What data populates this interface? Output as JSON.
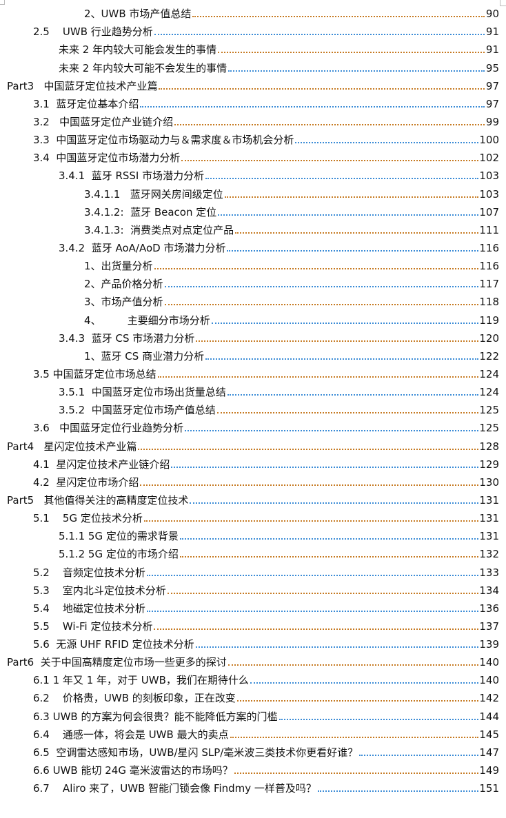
{
  "toc": [
    {
      "level": 3,
      "label": "2、UWB 市场产值总结",
      "page": "90"
    },
    {
      "level": 1,
      "label": "2.5    UWB 行业趋势分析",
      "page": "91"
    },
    {
      "level": 2,
      "label": "未来 2 年内较大可能会发生的事情",
      "page": "91"
    },
    {
      "level": 2,
      "label": "未来 2 年内较大可能不会发生的事情",
      "page": "95"
    },
    {
      "level": 0,
      "label": "Part3   中国蓝牙定位技术产业篇",
      "page": "97"
    },
    {
      "level": 1,
      "label": "3.1  蓝牙定位基本介绍",
      "page": "97"
    },
    {
      "level": 1,
      "label": "3.2   中国蓝牙定位产业链介绍",
      "page": "99"
    },
    {
      "level": 1,
      "label": "3.3  中国蓝牙定位市场驱动力与＆需求度＆市场机会分析",
      "page": "100"
    },
    {
      "level": 1,
      "label": "3.4  中国蓝牙定位市场潜力分析",
      "page": "102"
    },
    {
      "level": 2,
      "label": "3.4.1  蓝牙 RSSI 市场潜力分析",
      "page": "103"
    },
    {
      "level": 3,
      "label": "3.4.1.1   蓝牙网关房间级定位",
      "page": "103"
    },
    {
      "level": 3,
      "label": "3.4.1.2:  蓝牙 Beacon 定位",
      "page": "107"
    },
    {
      "level": 3,
      "label": "3.4.1.3:  消费类点对点定位产品",
      "page": "111"
    },
    {
      "level": 2,
      "label": "3.4.2  蓝牙 AoA/AoD 市场潜力分析",
      "page": "116"
    },
    {
      "level": 3,
      "label": "1、出货量分析",
      "page": "116"
    },
    {
      "level": 3,
      "label": "2、产品价格分析",
      "page": "117"
    },
    {
      "level": 3,
      "label": "3、市场产值分析",
      "page": "118"
    },
    {
      "level": 3,
      "label": "4、        主要细分市场分析",
      "page": "119"
    },
    {
      "level": 2,
      "label": "3.4.3  蓝牙 CS 市场潜力分析",
      "page": "120"
    },
    {
      "level": 3,
      "label": "1、蓝牙 CS 商业潜力分析",
      "page": "122"
    },
    {
      "level": 1,
      "label": "3.5 中国蓝牙定位市场总结",
      "page": "124"
    },
    {
      "level": 2,
      "label": "3.5.1  中国蓝牙定位市场出货量总结",
      "page": "124"
    },
    {
      "level": 2,
      "label": "3.5.2  中国蓝牙定位市场产值总结",
      "page": "125"
    },
    {
      "level": 1,
      "label": "3.6   中国蓝牙定位行业趋势分析",
      "page": "125"
    },
    {
      "level": 0,
      "label": "Part4   星闪定位技术产业篇",
      "page": "128"
    },
    {
      "level": 1,
      "label": "4.1  星闪定位技术产业链介绍",
      "page": "129"
    },
    {
      "level": 1,
      "label": "4.2  星闪定位市场介绍",
      "page": "130"
    },
    {
      "level": 0,
      "label": "Part5   其他值得关注的高精度定位技术",
      "page": "131"
    },
    {
      "level": 1,
      "label": "5.1    5G 定位技术分析",
      "page": "131"
    },
    {
      "level": 2,
      "label": "5.1.1 5G 定位的需求背景",
      "page": "131"
    },
    {
      "level": 2,
      "label": "5.1.2 5G 定位的市场介绍",
      "page": "132"
    },
    {
      "level": 1,
      "label": "5.2    音频定位技术分析",
      "page": "133"
    },
    {
      "level": 1,
      "label": "5.3    室内北斗定位技术分析",
      "page": "134"
    },
    {
      "level": 1,
      "label": "5.4    地磁定位技术分析",
      "page": "136"
    },
    {
      "level": 1,
      "label": "5.5    Wi-Fi 定位技术分析",
      "page": "137"
    },
    {
      "level": 1,
      "label": "5.6  无源 UHF RFID 定位技术分析",
      "page": "139"
    },
    {
      "level": 0,
      "label": "Part6  关于中国高精度定位市场一些更多的探讨",
      "page": "140"
    },
    {
      "level": 1,
      "label": "6.1 1 年又 1 年，对于 UWB，我们在期待什么",
      "page": "140"
    },
    {
      "level": 1,
      "label": "6.2    价格贵，UWB 的刻板印象，正在改变",
      "page": "142"
    },
    {
      "level": 1,
      "label": "6.3 UWB 的方案为何会很贵？能不能降低方案的门槛",
      "page": "144"
    },
    {
      "level": 1,
      "label": "6.4    通感一体，将会是 UWB 最大的卖点",
      "page": "145"
    },
    {
      "level": 1,
      "label": "6.5  空调雷达感知市场，UWB/星闪 SLP/毫米波三类技术你更看好谁？",
      "page": "147"
    },
    {
      "level": 1,
      "label": "6.6 UWB 能切 24G 毫米波雷达的市场吗？",
      "page": "149"
    },
    {
      "level": 1,
      "label": "6.7    Aliro 来了，UWB 智能门锁会像 Findmy 一样普及吗？",
      "page": "151"
    }
  ],
  "colors": {
    "leader_a": "#c67a22",
    "leader_b": "#3a8bd6",
    "text": "#111111"
  }
}
